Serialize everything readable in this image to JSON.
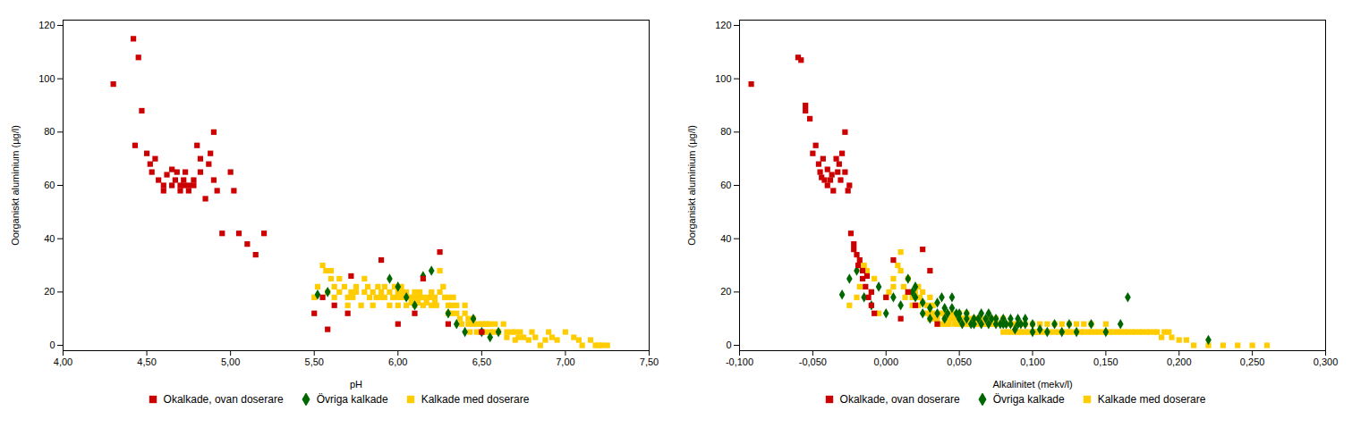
{
  "chart_data": [
    {
      "type": "scatter",
      "xlabel": "pH",
      "ylabel": "Oorganiskt aluminium (μg/l)",
      "xlim": [
        4.0,
        7.5
      ],
      "ylim": [
        -2,
        122
      ],
      "xticks": [
        {
          "value": 4.0,
          "label": "4,00"
        },
        {
          "value": 4.5,
          "label": "4,50"
        },
        {
          "value": 5.0,
          "label": "5,00"
        },
        {
          "value": 5.5,
          "label": "5,50"
        },
        {
          "value": 6.0,
          "label": "6,00"
        },
        {
          "value": 6.5,
          "label": "6,50"
        },
        {
          "value": 7.0,
          "label": "7,00"
        },
        {
          "value": 7.5,
          "label": "7,50"
        }
      ],
      "yticks": [
        0,
        20,
        40,
        60,
        80,
        100,
        120
      ],
      "legend": "bottom",
      "series": [
        {
          "name": "Okalkade, ovan doserare",
          "color": "#cc0000",
          "marker": "square",
          "x": [
            4.3,
            4.42,
            4.45,
            4.43,
            4.47,
            4.5,
            4.52,
            4.53,
            4.55,
            4.57,
            4.6,
            4.6,
            4.62,
            4.65,
            4.65,
            4.67,
            4.68,
            4.7,
            4.7,
            4.72,
            4.72,
            4.73,
            4.75,
            4.75,
            4.78,
            4.78,
            4.8,
            4.82,
            4.82,
            4.85,
            4.87,
            4.88,
            4.9,
            4.9,
            4.92,
            4.95,
            5.0,
            5.02,
            5.05,
            5.1,
            5.15,
            5.2,
            5.5,
            5.55,
            5.58,
            5.62,
            5.7,
            5.72,
            5.9,
            6.0,
            6.1,
            6.15,
            6.25,
            6.3,
            6.5
          ],
          "values": [
            98,
            115,
            108,
            75,
            88,
            72,
            68,
            65,
            70,
            62,
            60,
            58,
            64,
            66,
            60,
            62,
            65,
            60,
            58,
            62,
            60,
            65,
            58,
            60,
            62,
            60,
            75,
            65,
            70,
            55,
            68,
            72,
            62,
            80,
            58,
            42,
            65,
            58,
            42,
            38,
            34,
            42,
            12,
            18,
            6,
            15,
            12,
            26,
            32,
            8,
            12,
            25,
            35,
            8,
            5
          ]
        },
        {
          "name": "Övriga kalkade",
          "color": "#006600",
          "marker": "diamond",
          "x": [
            5.52,
            5.58,
            5.95,
            6.0,
            6.05,
            6.1,
            6.15,
            6.2,
            6.3,
            6.35,
            6.4,
            6.45,
            6.5,
            6.55,
            6.6
          ],
          "values": [
            19,
            20,
            25,
            22,
            18,
            15,
            26,
            28,
            12,
            8,
            5,
            10,
            5,
            3,
            5
          ]
        },
        {
          "name": "Kalkade med doserare",
          "color": "#ffcc00",
          "marker": "square",
          "x": [
            5.5,
            5.52,
            5.55,
            5.57,
            5.58,
            5.6,
            5.6,
            5.62,
            5.62,
            5.65,
            5.65,
            5.68,
            5.7,
            5.7,
            5.72,
            5.73,
            5.75,
            5.75,
            5.78,
            5.8,
            5.8,
            5.82,
            5.83,
            5.85,
            5.85,
            5.87,
            5.88,
            5.9,
            5.9,
            5.92,
            5.92,
            5.95,
            5.95,
            5.97,
            5.98,
            6.0,
            6.0,
            6.0,
            6.02,
            6.02,
            6.03,
            6.05,
            6.05,
            6.07,
            6.08,
            6.1,
            6.1,
            6.1,
            6.12,
            6.12,
            6.13,
            6.15,
            6.15,
            6.17,
            6.18,
            6.2,
            6.2,
            6.2,
            6.22,
            6.22,
            6.23,
            6.25,
            6.25,
            6.27,
            6.28,
            6.3,
            6.3,
            6.3,
            6.32,
            6.32,
            6.33,
            6.35,
            6.35,
            6.37,
            6.38,
            6.4,
            6.4,
            6.42,
            6.42,
            6.43,
            6.45,
            6.45,
            6.47,
            6.48,
            6.5,
            6.5,
            6.52,
            6.52,
            6.53,
            6.55,
            6.55,
            6.57,
            6.58,
            6.6,
            6.6,
            6.63,
            6.65,
            6.65,
            6.68,
            6.7,
            6.7,
            6.72,
            6.73,
            6.75,
            6.78,
            6.8,
            6.82,
            6.85,
            6.88,
            6.9,
            6.92,
            6.95,
            7.0,
            7.05,
            7.08,
            7.1,
            7.15,
            7.18,
            7.2,
            7.22,
            7.25
          ],
          "values": [
            18,
            22,
            30,
            28,
            20,
            25,
            28,
            22,
            18,
            20,
            25,
            22,
            18,
            15,
            20,
            18,
            22,
            20,
            15,
            20,
            25,
            22,
            18,
            15,
            20,
            18,
            22,
            20,
            18,
            22,
            18,
            15,
            20,
            18,
            22,
            20,
            15,
            18,
            20,
            22,
            18,
            15,
            20,
            18,
            16,
            20,
            18,
            15,
            16,
            18,
            20,
            18,
            15,
            16,
            18,
            15,
            18,
            20,
            16,
            18,
            15,
            20,
            28,
            22,
            18,
            15,
            12,
            18,
            15,
            12,
            18,
            15,
            12,
            10,
            8,
            12,
            15,
            10,
            8,
            5,
            10,
            8,
            5,
            8,
            8,
            5,
            8,
            5,
            8,
            5,
            8,
            5,
            8,
            5,
            5,
            8,
            5,
            3,
            5,
            2,
            5,
            3,
            5,
            3,
            2,
            5,
            3,
            0,
            2,
            5,
            3,
            2,
            5,
            3,
            2,
            0,
            2,
            0,
            0,
            0,
            0
          ]
        }
      ]
    },
    {
      "type": "scatter",
      "xlabel": "Alkalinitet (mekv/l)",
      "ylabel": "Oorganiskt aluminium (μg/l)",
      "xlim": [
        -0.1,
        0.3
      ],
      "ylim": [
        -2,
        122
      ],
      "xticks": [
        {
          "value": -0.1,
          "label": "-0,100"
        },
        {
          "value": -0.05,
          "label": "-0,050"
        },
        {
          "value": 0.0,
          "label": "0,000"
        },
        {
          "value": 0.05,
          "label": "0,050"
        },
        {
          "value": 0.1,
          "label": "0,100"
        },
        {
          "value": 0.15,
          "label": "0,150"
        },
        {
          "value": 0.2,
          "label": "0,200"
        },
        {
          "value": 0.25,
          "label": "0,250"
        },
        {
          "value": 0.3,
          "label": "0,300"
        }
      ],
      "yticks": [
        0,
        20,
        40,
        60,
        80,
        100,
        120
      ],
      "legend": "bottom",
      "series": [
        {
          "name": "Okalkade, ovan doserare",
          "color": "#cc0000",
          "marker": "square",
          "x": [
            -0.092,
            -0.06,
            -0.058,
            -0.055,
            -0.055,
            -0.052,
            -0.05,
            -0.048,
            -0.046,
            -0.045,
            -0.044,
            -0.043,
            -0.042,
            -0.04,
            -0.04,
            -0.038,
            -0.037,
            -0.036,
            -0.034,
            -0.033,
            -0.032,
            -0.031,
            -0.03,
            -0.028,
            -0.028,
            -0.026,
            -0.025,
            -0.024,
            -0.022,
            -0.022,
            -0.02,
            -0.019,
            -0.018,
            -0.016,
            -0.016,
            -0.014,
            -0.013,
            -0.012,
            -0.01,
            -0.01,
            -0.008,
            0.0,
            0.005,
            0.01,
            0.015,
            0.02,
            0.025,
            0.03,
            0.035
          ],
          "values": [
            98,
            108,
            107,
            90,
            88,
            85,
            72,
            75,
            68,
            65,
            63,
            70,
            62,
            66,
            60,
            62,
            64,
            58,
            70,
            65,
            68,
            62,
            72,
            80,
            65,
            58,
            60,
            42,
            38,
            36,
            34,
            30,
            32,
            25,
            28,
            22,
            26,
            18,
            15,
            20,
            12,
            18,
            32,
            10,
            20,
            15,
            36,
            28,
            8
          ]
        },
        {
          "name": "Övriga kalkade",
          "color": "#006600",
          "marker": "diamond",
          "x": [
            -0.03,
            -0.025,
            -0.02,
            -0.015,
            -0.01,
            -0.005,
            0.0,
            0.005,
            0.01,
            0.015,
            0.018,
            0.02,
            0.02,
            0.025,
            0.025,
            0.03,
            0.03,
            0.035,
            0.035,
            0.038,
            0.04,
            0.04,
            0.042,
            0.045,
            0.045,
            0.048,
            0.05,
            0.05,
            0.052,
            0.055,
            0.055,
            0.058,
            0.06,
            0.06,
            0.063,
            0.065,
            0.065,
            0.068,
            0.07,
            0.07,
            0.072,
            0.075,
            0.075,
            0.078,
            0.08,
            0.08,
            0.082,
            0.085,
            0.085,
            0.088,
            0.09,
            0.09,
            0.092,
            0.095,
            0.095,
            0.1,
            0.1,
            0.105,
            0.11,
            0.115,
            0.12,
            0.125,
            0.13,
            0.14,
            0.15,
            0.16,
            0.165,
            0.22
          ],
          "values": [
            19,
            25,
            28,
            18,
            15,
            22,
            12,
            18,
            15,
            25,
            20,
            18,
            22,
            12,
            16,
            10,
            14,
            16,
            12,
            18,
            10,
            14,
            12,
            18,
            14,
            12,
            12,
            10,
            8,
            12,
            10,
            8,
            10,
            8,
            10,
            12,
            8,
            10,
            8,
            12,
            10,
            8,
            10,
            8,
            8,
            10,
            8,
            8,
            10,
            6,
            8,
            10,
            8,
            8,
            10,
            5,
            8,
            6,
            5,
            8,
            5,
            8,
            5,
            8,
            5,
            8,
            18,
            2
          ]
        },
        {
          "name": "Kalkade med doserare",
          "color": "#ffcc00",
          "marker": "square",
          "x": [
            -0.025,
            -0.02,
            -0.018,
            -0.015,
            -0.013,
            -0.01,
            -0.008,
            -0.005,
            0.0,
            0.002,
            0.005,
            0.005,
            0.008,
            0.01,
            0.01,
            0.012,
            0.013,
            0.015,
            0.015,
            0.018,
            0.018,
            0.02,
            0.02,
            0.022,
            0.022,
            0.023,
            0.025,
            0.025,
            0.027,
            0.028,
            0.03,
            0.03,
            0.03,
            0.032,
            0.032,
            0.033,
            0.035,
            0.035,
            0.037,
            0.038,
            0.04,
            0.04,
            0.04,
            0.042,
            0.042,
            0.043,
            0.045,
            0.045,
            0.047,
            0.048,
            0.05,
            0.05,
            0.05,
            0.052,
            0.052,
            0.053,
            0.055,
            0.055,
            0.057,
            0.058,
            0.06,
            0.06,
            0.06,
            0.062,
            0.063,
            0.065,
            0.065,
            0.067,
            0.068,
            0.07,
            0.07,
            0.07,
            0.072,
            0.073,
            0.075,
            0.075,
            0.077,
            0.078,
            0.08,
            0.08,
            0.08,
            0.082,
            0.083,
            0.085,
            0.085,
            0.087,
            0.088,
            0.09,
            0.09,
            0.092,
            0.093,
            0.095,
            0.095,
            0.097,
            0.1,
            0.1,
            0.102,
            0.103,
            0.105,
            0.105,
            0.108,
            0.11,
            0.11,
            0.112,
            0.115,
            0.115,
            0.118,
            0.12,
            0.12,
            0.123,
            0.125,
            0.125,
            0.128,
            0.13,
            0.13,
            0.133,
            0.135,
            0.135,
            0.138,
            0.14,
            0.14,
            0.143,
            0.145,
            0.148,
            0.15,
            0.15,
            0.153,
            0.155,
            0.158,
            0.16,
            0.163,
            0.165,
            0.168,
            0.17,
            0.173,
            0.175,
            0.178,
            0.18,
            0.183,
            0.185,
            0.188,
            0.19,
            0.193,
            0.195,
            0.2,
            0.205,
            0.21,
            0.22,
            0.23,
            0.24,
            0.25,
            0.26
          ],
          "values": [
            15,
            18,
            22,
            30,
            28,
            20,
            25,
            12,
            18,
            20,
            25,
            22,
            30,
            35,
            28,
            22,
            18,
            25,
            20,
            18,
            15,
            20,
            18,
            22,
            15,
            18,
            20,
            16,
            12,
            15,
            18,
            12,
            10,
            15,
            12,
            10,
            8,
            10,
            8,
            12,
            8,
            10,
            12,
            8,
            10,
            8,
            12,
            10,
            8,
            10,
            8,
            10,
            12,
            8,
            10,
            8,
            12,
            8,
            8,
            10,
            8,
            10,
            8,
            8,
            10,
            8,
            10,
            8,
            8,
            10,
            8,
            10,
            8,
            8,
            8,
            10,
            8,
            8,
            5,
            8,
            10,
            8,
            5,
            8,
            5,
            8,
            5,
            5,
            8,
            5,
            8,
            5,
            8,
            5,
            5,
            8,
            5,
            5,
            5,
            8,
            5,
            5,
            8,
            5,
            5,
            8,
            5,
            5,
            8,
            5,
            5,
            8,
            5,
            5,
            8,
            5,
            5,
            8,
            5,
            5,
            8,
            5,
            5,
            5,
            5,
            8,
            5,
            5,
            5,
            5,
            5,
            5,
            5,
            5,
            5,
            5,
            5,
            5,
            5,
            5,
            3,
            5,
            5,
            3,
            2,
            2,
            0,
            0,
            0,
            0,
            0,
            0
          ]
        }
      ]
    }
  ]
}
